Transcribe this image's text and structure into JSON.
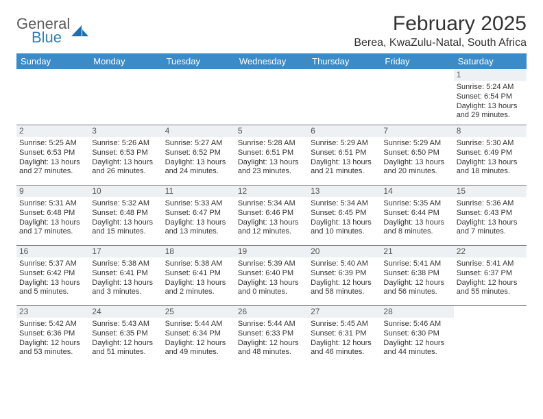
{
  "brand": {
    "line1": "General",
    "line2": "Blue",
    "accent_color": "#2a7fba",
    "text_color": "#5a5a5a"
  },
  "title": "February 2025",
  "location": "Berea, KwaZulu-Natal, South Africa",
  "header_bg": "#3b8bc8",
  "header_fg": "#ffffff",
  "daynum_bg": "#eef1f3",
  "border_color": "#7a7a7a",
  "day_headers": [
    "Sunday",
    "Monday",
    "Tuesday",
    "Wednesday",
    "Thursday",
    "Friday",
    "Saturday"
  ],
  "weeks": [
    [
      null,
      null,
      null,
      null,
      null,
      null,
      {
        "n": "1",
        "sr": "Sunrise: 5:24 AM",
        "ss": "Sunset: 6:54 PM",
        "dl1": "Daylight: 13 hours",
        "dl2": "and 29 minutes."
      }
    ],
    [
      {
        "n": "2",
        "sr": "Sunrise: 5:25 AM",
        "ss": "Sunset: 6:53 PM",
        "dl1": "Daylight: 13 hours",
        "dl2": "and 27 minutes."
      },
      {
        "n": "3",
        "sr": "Sunrise: 5:26 AM",
        "ss": "Sunset: 6:53 PM",
        "dl1": "Daylight: 13 hours",
        "dl2": "and 26 minutes."
      },
      {
        "n": "4",
        "sr": "Sunrise: 5:27 AM",
        "ss": "Sunset: 6:52 PM",
        "dl1": "Daylight: 13 hours",
        "dl2": "and 24 minutes."
      },
      {
        "n": "5",
        "sr": "Sunrise: 5:28 AM",
        "ss": "Sunset: 6:51 PM",
        "dl1": "Daylight: 13 hours",
        "dl2": "and 23 minutes."
      },
      {
        "n": "6",
        "sr": "Sunrise: 5:29 AM",
        "ss": "Sunset: 6:51 PM",
        "dl1": "Daylight: 13 hours",
        "dl2": "and 21 minutes."
      },
      {
        "n": "7",
        "sr": "Sunrise: 5:29 AM",
        "ss": "Sunset: 6:50 PM",
        "dl1": "Daylight: 13 hours",
        "dl2": "and 20 minutes."
      },
      {
        "n": "8",
        "sr": "Sunrise: 5:30 AM",
        "ss": "Sunset: 6:49 PM",
        "dl1": "Daylight: 13 hours",
        "dl2": "and 18 minutes."
      }
    ],
    [
      {
        "n": "9",
        "sr": "Sunrise: 5:31 AM",
        "ss": "Sunset: 6:48 PM",
        "dl1": "Daylight: 13 hours",
        "dl2": "and 17 minutes."
      },
      {
        "n": "10",
        "sr": "Sunrise: 5:32 AM",
        "ss": "Sunset: 6:48 PM",
        "dl1": "Daylight: 13 hours",
        "dl2": "and 15 minutes."
      },
      {
        "n": "11",
        "sr": "Sunrise: 5:33 AM",
        "ss": "Sunset: 6:47 PM",
        "dl1": "Daylight: 13 hours",
        "dl2": "and 13 minutes."
      },
      {
        "n": "12",
        "sr": "Sunrise: 5:34 AM",
        "ss": "Sunset: 6:46 PM",
        "dl1": "Daylight: 13 hours",
        "dl2": "and 12 minutes."
      },
      {
        "n": "13",
        "sr": "Sunrise: 5:34 AM",
        "ss": "Sunset: 6:45 PM",
        "dl1": "Daylight: 13 hours",
        "dl2": "and 10 minutes."
      },
      {
        "n": "14",
        "sr": "Sunrise: 5:35 AM",
        "ss": "Sunset: 6:44 PM",
        "dl1": "Daylight: 13 hours",
        "dl2": "and 8 minutes."
      },
      {
        "n": "15",
        "sr": "Sunrise: 5:36 AM",
        "ss": "Sunset: 6:43 PM",
        "dl1": "Daylight: 13 hours",
        "dl2": "and 7 minutes."
      }
    ],
    [
      {
        "n": "16",
        "sr": "Sunrise: 5:37 AM",
        "ss": "Sunset: 6:42 PM",
        "dl1": "Daylight: 13 hours",
        "dl2": "and 5 minutes."
      },
      {
        "n": "17",
        "sr": "Sunrise: 5:38 AM",
        "ss": "Sunset: 6:41 PM",
        "dl1": "Daylight: 13 hours",
        "dl2": "and 3 minutes."
      },
      {
        "n": "18",
        "sr": "Sunrise: 5:38 AM",
        "ss": "Sunset: 6:41 PM",
        "dl1": "Daylight: 13 hours",
        "dl2": "and 2 minutes."
      },
      {
        "n": "19",
        "sr": "Sunrise: 5:39 AM",
        "ss": "Sunset: 6:40 PM",
        "dl1": "Daylight: 13 hours",
        "dl2": "and 0 minutes."
      },
      {
        "n": "20",
        "sr": "Sunrise: 5:40 AM",
        "ss": "Sunset: 6:39 PM",
        "dl1": "Daylight: 12 hours",
        "dl2": "and 58 minutes."
      },
      {
        "n": "21",
        "sr": "Sunrise: 5:41 AM",
        "ss": "Sunset: 6:38 PM",
        "dl1": "Daylight: 12 hours",
        "dl2": "and 56 minutes."
      },
      {
        "n": "22",
        "sr": "Sunrise: 5:41 AM",
        "ss": "Sunset: 6:37 PM",
        "dl1": "Daylight: 12 hours",
        "dl2": "and 55 minutes."
      }
    ],
    [
      {
        "n": "23",
        "sr": "Sunrise: 5:42 AM",
        "ss": "Sunset: 6:36 PM",
        "dl1": "Daylight: 12 hours",
        "dl2": "and 53 minutes."
      },
      {
        "n": "24",
        "sr": "Sunrise: 5:43 AM",
        "ss": "Sunset: 6:35 PM",
        "dl1": "Daylight: 12 hours",
        "dl2": "and 51 minutes."
      },
      {
        "n": "25",
        "sr": "Sunrise: 5:44 AM",
        "ss": "Sunset: 6:34 PM",
        "dl1": "Daylight: 12 hours",
        "dl2": "and 49 minutes."
      },
      {
        "n": "26",
        "sr": "Sunrise: 5:44 AM",
        "ss": "Sunset: 6:33 PM",
        "dl1": "Daylight: 12 hours",
        "dl2": "and 48 minutes."
      },
      {
        "n": "27",
        "sr": "Sunrise: 5:45 AM",
        "ss": "Sunset: 6:31 PM",
        "dl1": "Daylight: 12 hours",
        "dl2": "and 46 minutes."
      },
      {
        "n": "28",
        "sr": "Sunrise: 5:46 AM",
        "ss": "Sunset: 6:30 PM",
        "dl1": "Daylight: 12 hours",
        "dl2": "and 44 minutes."
      },
      null
    ]
  ]
}
